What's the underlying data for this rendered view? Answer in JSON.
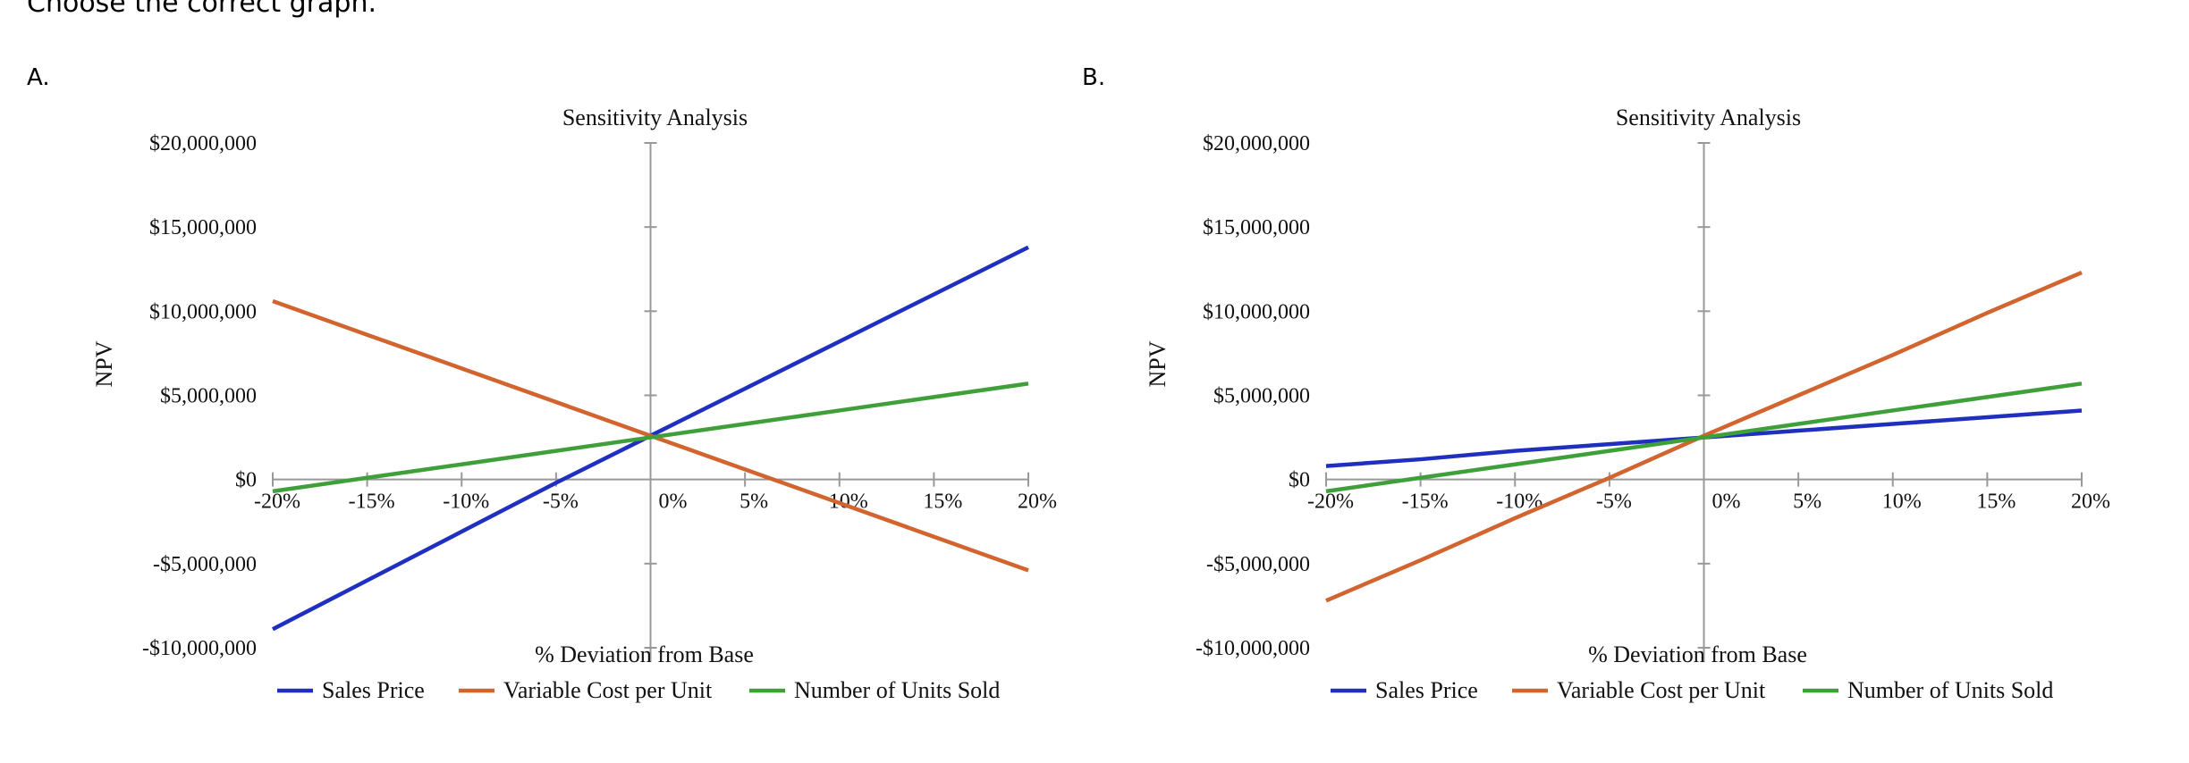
{
  "question": {
    "text": "Choose the correct graph."
  },
  "options": [
    {
      "label": "A."
    },
    {
      "label": "B."
    }
  ],
  "colors": {
    "sales_price": "#1f2fbf",
    "variable_cost": "#d2652f",
    "units_sold": "#3fa03a",
    "axis": "#999999"
  },
  "chart_data": [
    {
      "type": "line",
      "title": "Sensitivity Analysis",
      "xlabel": "% Deviation from Base",
      "ylabel": "NPV",
      "x": [
        -20,
        -15,
        -10,
        -5,
        0,
        5,
        10,
        15,
        20
      ],
      "x_tick_labels": [
        "-20%",
        "-15%",
        "-10%",
        "-5%",
        "0%",
        "5%",
        "10%",
        "15%",
        "20%"
      ],
      "y_ticks": [
        -10000000,
        -5000000,
        0,
        5000000,
        10000000,
        15000000,
        20000000
      ],
      "y_tick_labels": [
        "-$10,000,000",
        "-$5,000,000",
        "$0",
        "$5,000,000",
        "$10,000,000",
        "$15,000,000",
        "$20,000,000"
      ],
      "xlim": [
        -20,
        20
      ],
      "ylim": [
        -10000000,
        20000000
      ],
      "legend": "bottom",
      "series": [
        {
          "name": "Sales Price",
          "color": "#1f2fbf",
          "values": [
            -8900000,
            -6000000,
            -3100000,
            -200000,
            2600000,
            5400000,
            8200000,
            11000000,
            13800000
          ]
        },
        {
          "name": "Variable Cost per Unit",
          "color": "#d2652f",
          "values": [
            10600000,
            8600000,
            6600000,
            4600000,
            2600000,
            600000,
            -1400000,
            -3400000,
            -5400000
          ]
        },
        {
          "name": "Number of Units Sold",
          "color": "#3fa03a",
          "values": [
            -700000,
            100000,
            900000,
            1700000,
            2500000,
            3300000,
            4100000,
            4900000,
            5700000
          ]
        }
      ]
    },
    {
      "type": "line",
      "title": "Sensitivity Analysis",
      "xlabel": "% Deviation from Base",
      "ylabel": "NPV",
      "x": [
        -20,
        -15,
        -10,
        -5,
        0,
        5,
        10,
        15,
        20
      ],
      "x_tick_labels": [
        "-20%",
        "-15%",
        "-10%",
        "-5%",
        "0%",
        "5%",
        "10%",
        "15%",
        "20%"
      ],
      "y_ticks": [
        -10000000,
        -5000000,
        0,
        5000000,
        10000000,
        15000000,
        20000000
      ],
      "y_tick_labels": [
        "-$10,000,000",
        "-$5,000,000",
        "$0",
        "$5,000,000",
        "$10,000,000",
        "$15,000,000",
        "$20,000,000"
      ],
      "xlim": [
        -20,
        20
      ],
      "ylim": [
        -10000000,
        20000000
      ],
      "legend": "bottom",
      "series": [
        {
          "name": "Sales Price",
          "color": "#1f2fbf",
          "values": [
            800000,
            1200000,
            1700000,
            2100000,
            2500000,
            2900000,
            3300000,
            3700000,
            4100000
          ]
        },
        {
          "name": "Variable Cost per Unit",
          "color": "#d2652f",
          "values": [
            -7200000,
            -4800000,
            -2300000,
            100000,
            2600000,
            5000000,
            7400000,
            9900000,
            12300000
          ]
        },
        {
          "name": "Number of Units Sold",
          "color": "#3fa03a",
          "values": [
            -700000,
            100000,
            900000,
            1700000,
            2500000,
            3300000,
            4100000,
            4900000,
            5700000
          ]
        }
      ]
    }
  ]
}
